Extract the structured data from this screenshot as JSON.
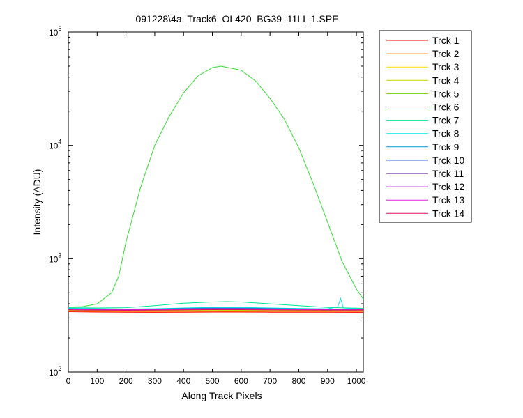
{
  "chart_data": {
    "type": "line",
    "title": "091228\\4a_Track6_OL420_BG39_11LI_1.SPE",
    "xlabel": "Along Track Pixels",
    "ylabel": "Intensity (ADU)",
    "xlim": [
      0,
      1024
    ],
    "ylim": [
      100,
      100000
    ],
    "yscale": "log",
    "grid": false,
    "legend_position": "outside-right-top",
    "x_ticks": [
      "0",
      "100",
      "200",
      "300",
      "400",
      "500",
      "600",
      "700",
      "800",
      "900",
      "1000"
    ],
    "y_ticks": [
      {
        "base": "10",
        "exp": "2"
      },
      {
        "base": "10",
        "exp": "3"
      },
      {
        "base": "10",
        "exp": "4"
      },
      {
        "base": "10",
        "exp": "5"
      }
    ],
    "series": [
      {
        "name": "Trck 1",
        "color": "#ff0000",
        "x": [
          0,
          100,
          200,
          300,
          400,
          500,
          600,
          700,
          800,
          900,
          1024
        ],
        "y": [
          340,
          338,
          337,
          336,
          337,
          338,
          338,
          337,
          337,
          337,
          336
        ]
      },
      {
        "name": "Trck 2",
        "color": "#ff7f00",
        "x": [
          0,
          100,
          200,
          300,
          400,
          500,
          600,
          700,
          800,
          900,
          1024
        ],
        "y": [
          344,
          342,
          341,
          341,
          342,
          343,
          342,
          342,
          341,
          341,
          341
        ]
      },
      {
        "name": "Trck 3",
        "color": "#ffd700",
        "x": [
          0,
          100,
          200,
          300,
          400,
          500,
          600,
          700,
          800,
          900,
          1024
        ],
        "y": [
          348,
          346,
          345,
          345,
          346,
          347,
          346,
          346,
          345,
          345,
          345
        ]
      },
      {
        "name": "Trck 4",
        "color": "#c8d400",
        "x": [
          0,
          100,
          200,
          300,
          400,
          500,
          600,
          700,
          800,
          900,
          1024
        ],
        "y": [
          351,
          349,
          348,
          348,
          350,
          351,
          350,
          349,
          348,
          348,
          348
        ]
      },
      {
        "name": "Trck 5",
        "color": "#6fd400",
        "x": [
          0,
          100,
          200,
          300,
          400,
          500,
          600,
          700,
          800,
          900,
          1024
        ],
        "y": [
          355,
          353,
          352,
          353,
          356,
          358,
          357,
          355,
          353,
          352,
          352
        ]
      },
      {
        "name": "Trck 6",
        "color": "#33dd33",
        "x": [
          0,
          50,
          100,
          150,
          175,
          200,
          250,
          300,
          350,
          400,
          450,
          500,
          530,
          600,
          650,
          700,
          750,
          800,
          850,
          900,
          950,
          1000,
          1024
        ],
        "y": [
          375,
          378,
          400,
          500,
          700,
          1400,
          4200,
          10000,
          18000,
          29000,
          41000,
          48500,
          50000,
          46000,
          37000,
          26000,
          17000,
          9500,
          4600,
          2100,
          950,
          540,
          440
        ]
      },
      {
        "name": "Trck 7",
        "color": "#00e58c",
        "x": [
          0,
          100,
          200,
          300,
          400,
          500,
          550,
          600,
          700,
          800,
          900,
          1024
        ],
        "y": [
          370,
          368,
          370,
          385,
          405,
          415,
          418,
          415,
          400,
          385,
          372,
          365
        ]
      },
      {
        "name": "Trck 8",
        "color": "#00e5e5",
        "x": [
          0,
          100,
          200,
          300,
          400,
          500,
          600,
          700,
          800,
          900,
          935,
          945,
          955,
          1000,
          1024
        ],
        "y": [
          365,
          362,
          360,
          362,
          368,
          372,
          372,
          368,
          364,
          361,
          375,
          445,
          368,
          362,
          361
        ]
      },
      {
        "name": "Trck 9",
        "color": "#0099dd",
        "x": [
          0,
          100,
          200,
          300,
          400,
          500,
          600,
          700,
          800,
          900,
          1024
        ],
        "y": [
          362,
          360,
          359,
          360,
          364,
          367,
          366,
          364,
          361,
          360,
          359
        ]
      },
      {
        "name": "Trck 10",
        "color": "#0033cc",
        "x": [
          0,
          100,
          200,
          300,
          400,
          500,
          600,
          700,
          800,
          900,
          1024
        ],
        "y": [
          359,
          357,
          356,
          357,
          360,
          362,
          362,
          360,
          358,
          357,
          357
        ]
      },
      {
        "name": "Trck 11",
        "color": "#4b0099",
        "x": [
          0,
          100,
          200,
          300,
          400,
          500,
          600,
          700,
          800,
          900,
          1024
        ],
        "y": [
          357,
          355,
          355,
          355,
          358,
          360,
          360,
          358,
          356,
          355,
          355
        ]
      },
      {
        "name": "Trck 12",
        "color": "#a020d0",
        "x": [
          0,
          100,
          200,
          300,
          400,
          500,
          600,
          700,
          800,
          900,
          1024
        ],
        "y": [
          360,
          358,
          357,
          358,
          361,
          363,
          363,
          361,
          359,
          358,
          358
        ]
      },
      {
        "name": "Trck 13",
        "color": "#dd22dd",
        "x": [
          0,
          100,
          200,
          300,
          400,
          500,
          600,
          700,
          800,
          900,
          1024
        ],
        "y": [
          356,
          354,
          353,
          354,
          356,
          358,
          358,
          356,
          355,
          354,
          354
        ]
      },
      {
        "name": "Trck 14",
        "color": "#dd1166",
        "x": [
          0,
          100,
          200,
          300,
          400,
          500,
          600,
          700,
          800,
          900,
          1024
        ],
        "y": [
          353,
          351,
          350,
          351,
          353,
          355,
          355,
          353,
          352,
          351,
          351
        ]
      }
    ]
  }
}
